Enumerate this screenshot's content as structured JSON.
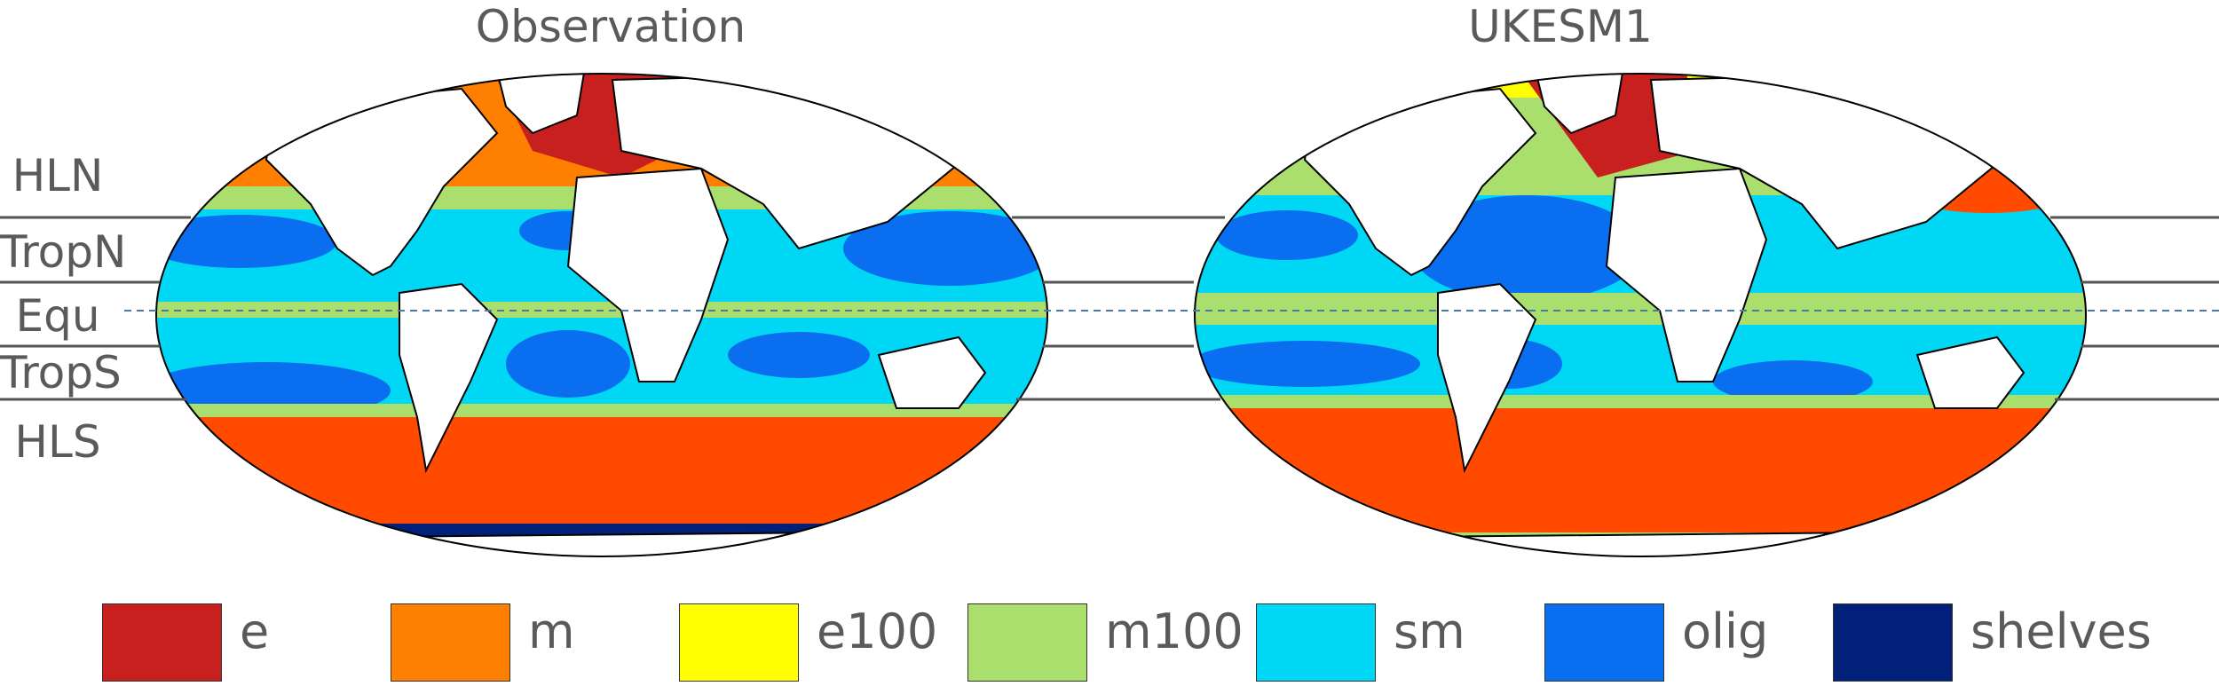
{
  "figure": {
    "titles": {
      "left": "Observation",
      "right": "UKESM1"
    },
    "regions": [
      {
        "key": "hln",
        "label": "HLN"
      },
      {
        "key": "tropn",
        "label": "TropN"
      },
      {
        "key": "equ",
        "label": "Equ"
      },
      {
        "key": "trops",
        "label": "TropS"
      },
      {
        "key": "hls",
        "label": "HLS"
      }
    ],
    "legend": [
      {
        "label": "e",
        "color": "#c8201e"
      },
      {
        "label": "m",
        "color": "#ff7f00"
      },
      {
        "label": "e100",
        "color": "#ffff00"
      },
      {
        "label": "m100",
        "color": "#aadf6d"
      },
      {
        "label": "sm",
        "color": "#00d7f5"
      },
      {
        "label": "olig",
        "color": "#0a6ef0"
      },
      {
        "label": "shelves",
        "color": "#00207a"
      }
    ],
    "colors": {
      "land": "#ffffff",
      "coastline": "#000000",
      "region_lines": "#555555",
      "equator_dashes": "#4a7aa8",
      "text": "#5a5a5a",
      "southern_ocean": "#ff4a00",
      "sea_ice": "#00207a"
    }
  }
}
